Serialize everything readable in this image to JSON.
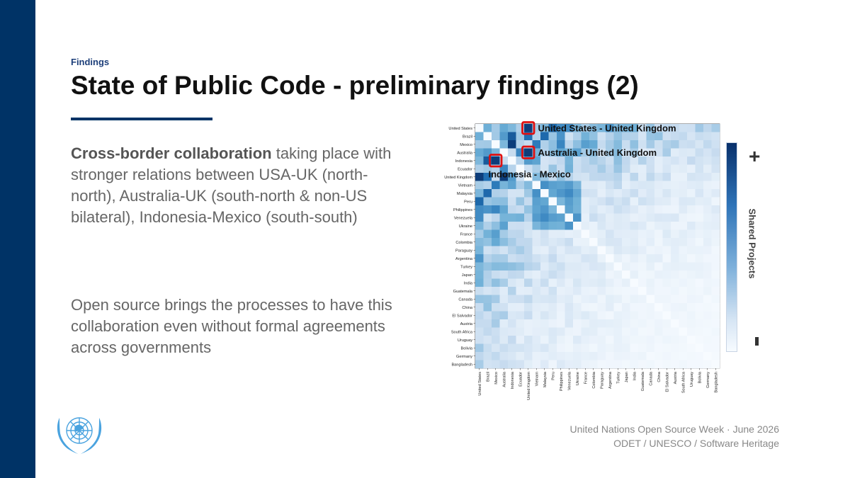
{
  "slide": {
    "section": "Findings",
    "title": "State of Public Code - preliminary findings (2)",
    "p1_bold": "Cross-border collaboration",
    "p1_rest": " taking place with stronger relations between USA-UK (north-north), Australia-UK (south-north & non-US bilateral), Indonesia-Mexico (south-south)",
    "p2": "Open source brings the processes to have this collaboration even without formal agreements across governments",
    "footer_line1": "United Nations Open Source Week · June 2026",
    "footer_line2": "ODET / UNESCO / Software Heritage"
  },
  "colors": {
    "brand_navy": "#003366",
    "un_blue": "#4aa3df",
    "highlight_red": "#e01010"
  },
  "chart_data": {
    "type": "heatmap",
    "countries": [
      "United States",
      "Brazil",
      "Mexico",
      "Australia",
      "Indonesia",
      "Ecuador",
      "United Kingdom",
      "Vietnam",
      "Malaysia",
      "Peru",
      "Philippines",
      "Venezuela",
      "Ukraine",
      "France",
      "Colombia",
      "Paraguay",
      "Argentina",
      "Turkey",
      "Japan",
      "India",
      "Guatemala",
      "Canada",
      "China",
      "El Salvador",
      "Austria",
      "South Africa",
      "Uruguay",
      "Bolivia",
      "Germany",
      "Bangladesh"
    ],
    "colorbar_label": "Shared Projects",
    "colorbar_high": "+",
    "colorbar_low": "-",
    "scale": "relative",
    "highlights": [
      {
        "row": "United States",
        "col": "United Kingdom",
        "label": "United States - United Kingdom"
      },
      {
        "row": "Australia",
        "col": "United Kingdom",
        "label": "Australia - United Kingdom"
      },
      {
        "row": "Indonesia",
        "col": "Mexico",
        "label": "Indonesia - Mexico"
      }
    ]
  }
}
